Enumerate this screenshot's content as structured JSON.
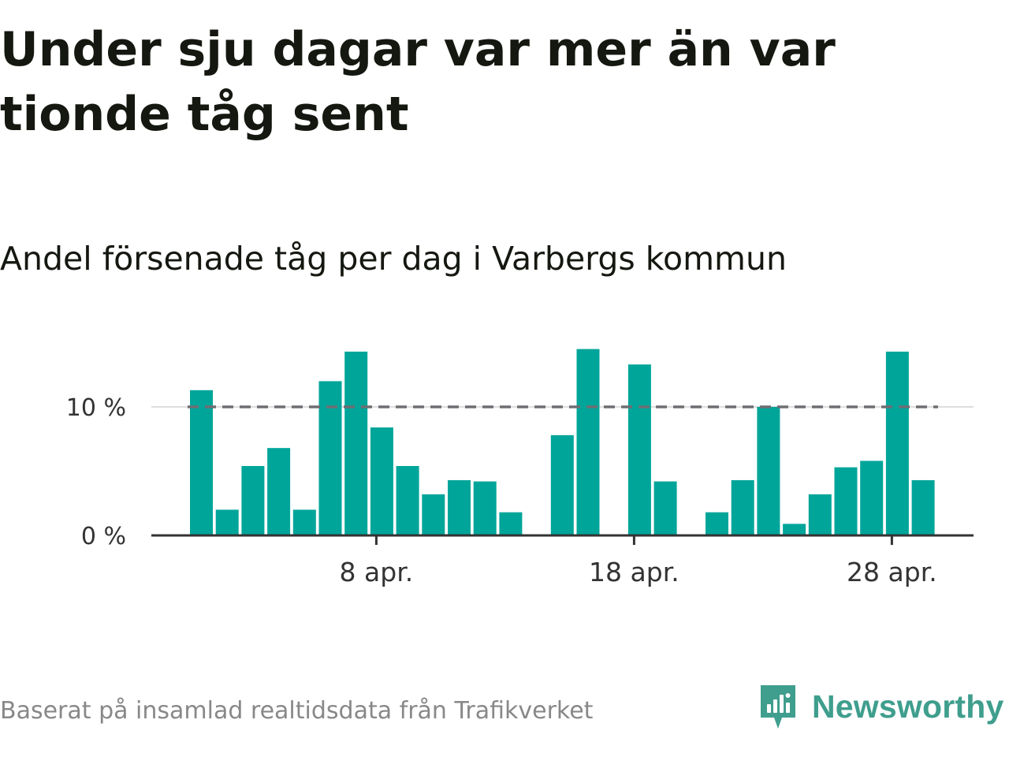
{
  "title": "Under sju dagar var mer än var tionde tåg sent",
  "subtitle": "Andel försenade tåg per dag i Varbergs kommun",
  "source": "Baserat på insamlad realtidsdata från Trafikverket",
  "brand": {
    "name": "Newsworthy",
    "icon": "newsworthy-logo-icon",
    "color": "#3f9e8d"
  },
  "chart_data": {
    "type": "bar",
    "color": "#00a59a",
    "x_start_day": 1,
    "x_end_day": 30,
    "x_ticks": [
      {
        "day": 8,
        "label": "8 apr."
      },
      {
        "day": 18,
        "label": "18 apr."
      },
      {
        "day": 28,
        "label": "28 apr."
      }
    ],
    "y_ticks": [
      {
        "value": 0,
        "label": "0 %"
      },
      {
        "value": 10,
        "label": "10 %"
      }
    ],
    "ylim": [
      0,
      15
    ],
    "reference_line": {
      "value": 10,
      "style": "dashed",
      "color": "#6e6e73"
    },
    "series": [
      {
        "values": [
          {
            "day": 1,
            "value": 11.3
          },
          {
            "day": 2,
            "value": 2.0
          },
          {
            "day": 3,
            "value": 5.4
          },
          {
            "day": 4,
            "value": 6.8
          },
          {
            "day": 5,
            "value": 2.0
          },
          {
            "day": 6,
            "value": 12.0
          },
          {
            "day": 7,
            "value": 14.3
          },
          {
            "day": 8,
            "value": 8.4
          },
          {
            "day": 9,
            "value": 5.4
          },
          {
            "day": 10,
            "value": 3.2
          },
          {
            "day": 11,
            "value": 4.3
          },
          {
            "day": 12,
            "value": 4.2
          },
          {
            "day": 13,
            "value": 1.8
          },
          {
            "day": 15,
            "value": 7.8
          },
          {
            "day": 16,
            "value": 14.5
          },
          {
            "day": 18,
            "value": 13.3
          },
          {
            "day": 19,
            "value": 4.2
          },
          {
            "day": 21,
            "value": 1.8
          },
          {
            "day": 22,
            "value": 4.3
          },
          {
            "day": 23,
            "value": 10.0
          },
          {
            "day": 24,
            "value": 0.9
          },
          {
            "day": 25,
            "value": 3.2
          },
          {
            "day": 26,
            "value": 5.3
          },
          {
            "day": 27,
            "value": 5.8
          },
          {
            "day": 28,
            "value": 14.3
          },
          {
            "day": 29,
            "value": 4.3
          }
        ]
      }
    ]
  }
}
